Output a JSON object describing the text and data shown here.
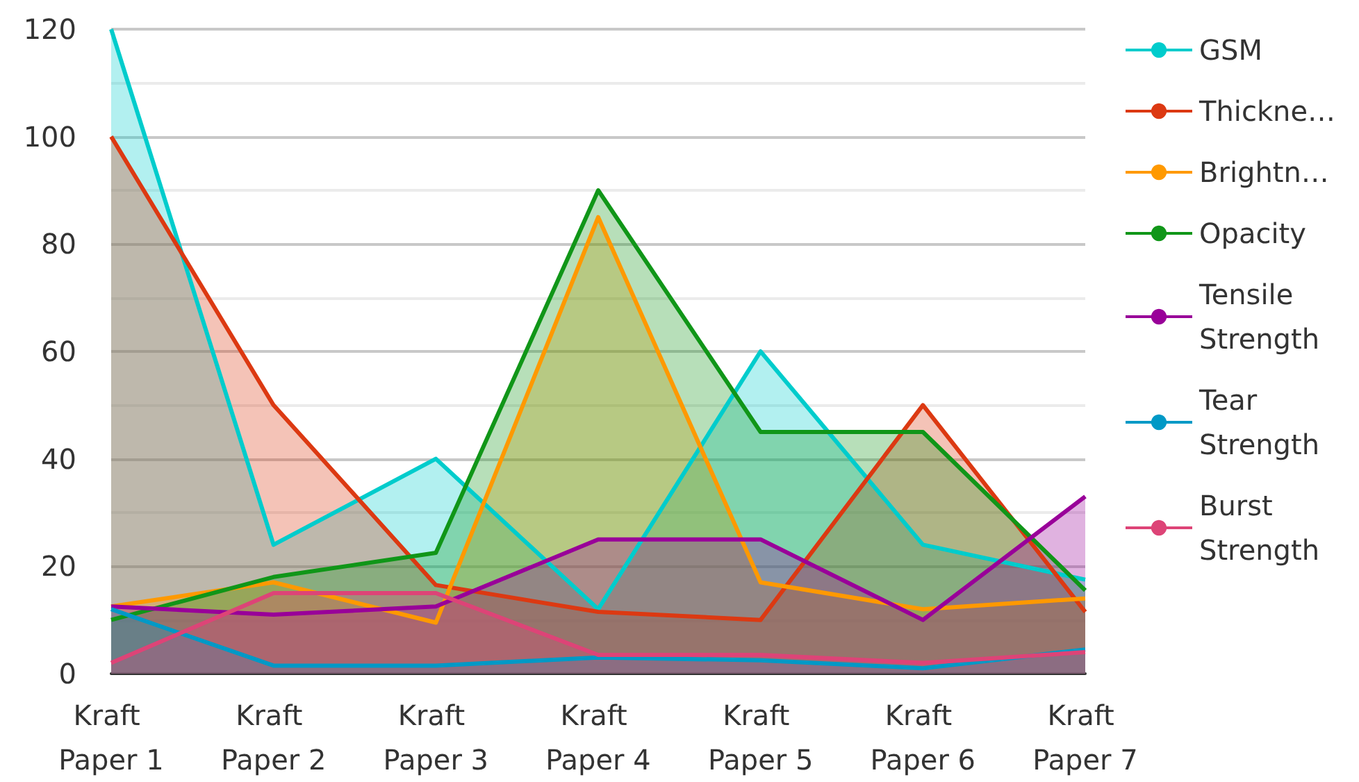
{
  "chart_data": {
    "type": "area",
    "categories": [
      "Kraft Paper 1",
      "Kraft Paper 2",
      "Kraft Paper 3",
      "Kraft Paper 4",
      "Kraft Paper 5",
      "Kraft Paper 6",
      "Kraft Paper 7"
    ],
    "series": [
      {
        "name": "GSM",
        "color": "#00cccc",
        "values": [
          120,
          24,
          40,
          12,
          60,
          24,
          17.5
        ]
      },
      {
        "name": "Thickne…",
        "color": "#dc3912",
        "values": [
          100,
          50,
          16.5,
          11.5,
          10,
          50,
          11.5
        ]
      },
      {
        "name": "Brightn…",
        "color": "#ff9900",
        "values": [
          12.5,
          17,
          9.5,
          85,
          17,
          12,
          14
        ]
      },
      {
        "name": "Opacity",
        "color": "#109618",
        "values": [
          10,
          18,
          22.5,
          90,
          45,
          45,
          15.5
        ]
      },
      {
        "name": "Tensile Strength",
        "color": "#990099",
        "values": [
          12.5,
          11,
          12.5,
          25,
          25,
          10,
          33
        ]
      },
      {
        "name": "Tear Strength",
        "color": "#0099c6",
        "values": [
          12,
          1.5,
          1.5,
          3,
          2.5,
          1,
          4.5
        ]
      },
      {
        "name": "Burst Strength",
        "color": "#dd4477",
        "values": [
          2,
          15,
          15,
          3.5,
          3.5,
          2,
          4
        ]
      }
    ],
    "ylim": [
      0,
      120
    ],
    "yticks": [
      0,
      20,
      40,
      60,
      80,
      100,
      120
    ],
    "grid": "y",
    "legend": "right",
    "marker": "none"
  }
}
